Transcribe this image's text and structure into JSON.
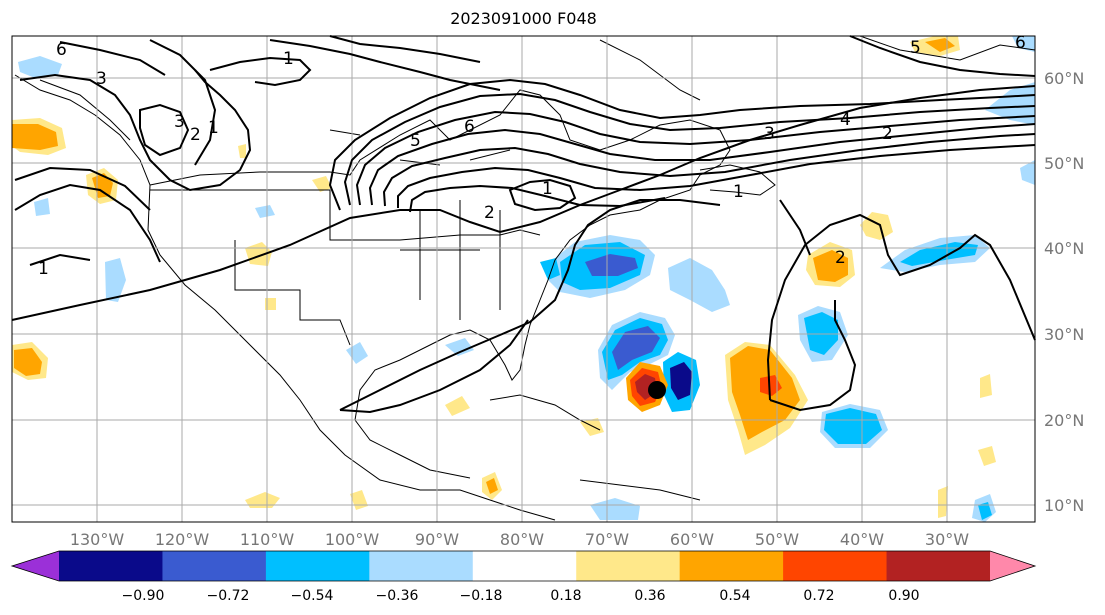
{
  "title": "2023091000 F048",
  "axes": {
    "lon_labels": [
      "130°W",
      "120°W",
      "110°W",
      "100°W",
      "90°W",
      "80°W",
      "70°W",
      "60°W",
      "50°W",
      "40°W",
      "30°W"
    ],
    "lat_labels": [
      "60°N",
      "50°N",
      "40°N",
      "30°N",
      "20°N",
      "10°N"
    ]
  },
  "contour_labels": [
    "6",
    "3",
    "1",
    "3",
    "2",
    "1",
    "5",
    "6",
    "1",
    "2",
    "3",
    "4",
    "2",
    "1",
    "1",
    "2",
    "5",
    "6"
  ],
  "colorbar": {
    "tick_labels": [
      "−0.90",
      "−0.72",
      "−0.54",
      "−0.36",
      "−0.18",
      "0.18",
      "0.36",
      "0.54",
      "0.72",
      "0.90"
    ],
    "colors": [
      "#9b30d8",
      "#0a0a8a",
      "#3a5bd0",
      "#00bfff",
      "#aadcff",
      "#ffffff",
      "#ffe88a",
      "#ffa500",
      "#ff4500",
      "#b22222",
      "#ff88aa"
    ]
  },
  "shading_colors": {
    "negative_light": "#aadcff",
    "negative_mid": "#00bfff",
    "negative_strong": "#3a5bd0",
    "negative_extreme": "#0a0a8a",
    "positive_light": "#ffe88a",
    "positive_mid": "#ffa500",
    "positive_strong": "#ff4500",
    "positive_extreme": "#b22222"
  }
}
